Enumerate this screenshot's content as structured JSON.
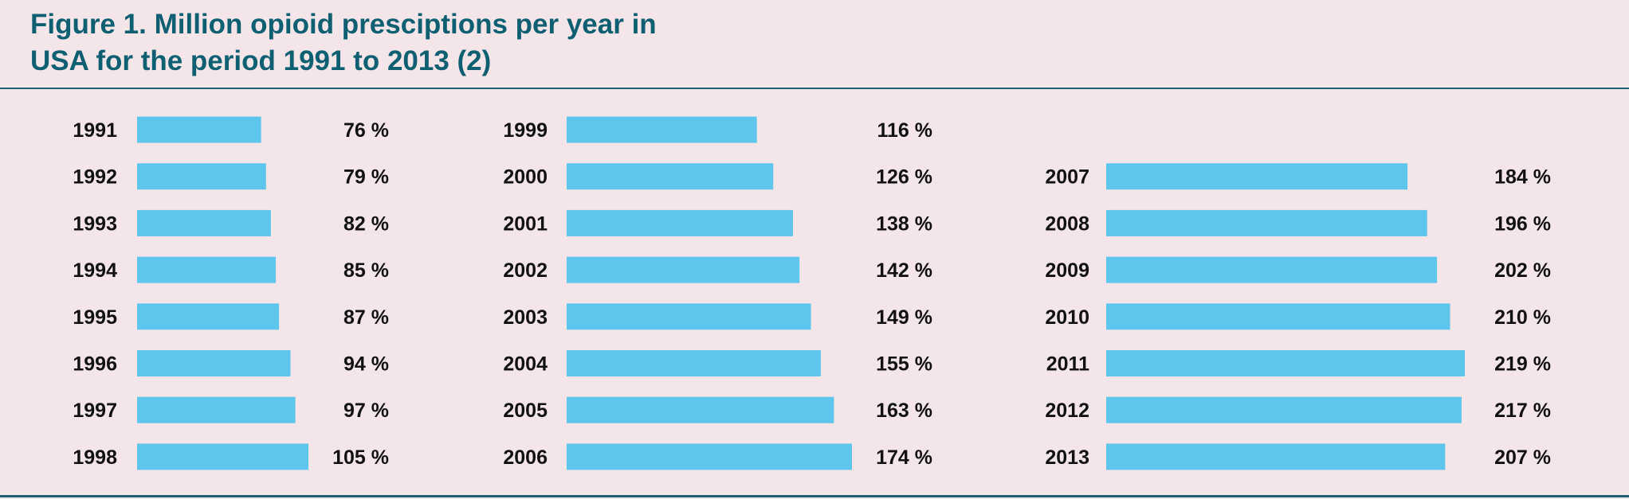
{
  "title_line1": "Figure 1. Million opioid presciptions per year in",
  "title_line2": "USA for the period 1991 to 2013 (2)",
  "colors": {
    "background": "#f4e6e8",
    "bar": "#5ec5ec",
    "title": "#0f5f73",
    "rule": "#1d5f73"
  },
  "chart_data": {
    "type": "bar",
    "orientation": "horizontal",
    "title": "Figure 1. Million opioid presciptions per year in USA for the period 1991 to 2013 (2)",
    "value_suffix": " %",
    "panels": [
      {
        "categories": [
          "1991",
          "1992",
          "1993",
          "1994",
          "1995",
          "1996",
          "1997",
          "1998"
        ],
        "values": [
          76,
          79,
          82,
          85,
          87,
          94,
          97,
          105
        ]
      },
      {
        "categories": [
          "1999",
          "2000",
          "2001",
          "2002",
          "2003",
          "2004",
          "2005",
          "2006"
        ],
        "values": [
          116,
          126,
          138,
          142,
          149,
          155,
          163,
          174
        ]
      },
      {
        "categories": [
          "2007",
          "2008",
          "2009",
          "2010",
          "2011",
          "2012",
          "2013"
        ],
        "values": [
          184,
          196,
          202,
          210,
          219,
          217,
          207
        ]
      }
    ]
  }
}
